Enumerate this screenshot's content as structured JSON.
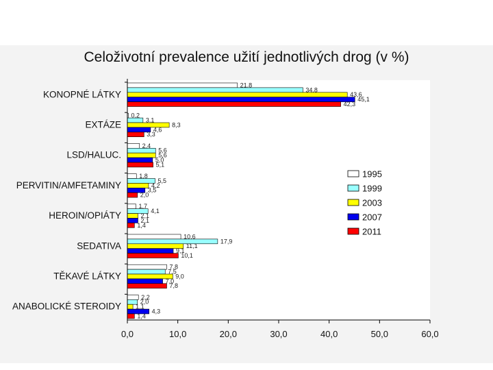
{
  "chart_data": {
    "type": "bar",
    "orientation": "horizontal",
    "title": "Celoživotní prevalence užití jednotlivých drog (v %)",
    "xlabel": "",
    "ylabel": "",
    "xlim": [
      0,
      60
    ],
    "x_ticks": [
      0,
      10,
      20,
      30,
      40,
      50,
      60
    ],
    "x_tick_labels": [
      "0,0",
      "10,0",
      "20,0",
      "30,0",
      "40,0",
      "50,0",
      "60,0"
    ],
    "grid": false,
    "legend_position": "right",
    "categories": [
      "KONOPNÉ LÁTKY",
      "EXTÁZE",
      "LSD/HALUC.",
      "PERVITIN/AMFETAMINY",
      "HEROIN/OPIÁTY",
      "SEDATIVA",
      "TĚKAVÉ LÁTKY",
      "ANABOLICKÉ STEROIDY"
    ],
    "series": [
      {
        "name": "1995",
        "color": "#ffffff",
        "values": [
          21.8,
          0.2,
          2.4,
          1.8,
          1.7,
          10.6,
          7.8,
          2.2
        ],
        "labels": [
          "21,8",
          "0,2",
          "2,4",
          "1,8",
          "1,7",
          "10,6",
          "7,8",
          "2,2"
        ]
      },
      {
        "name": "1999",
        "color": "#99ffff",
        "values": [
          34.8,
          3.1,
          5.6,
          5.5,
          4.1,
          17.9,
          7.5,
          2.0
        ],
        "labels": [
          "34,8",
          "3,1",
          "5,6",
          "5,5",
          "4,1",
          "17,9",
          "7,5",
          "2,0"
        ]
      },
      {
        "name": "2003",
        "color": "#ffff00",
        "values": [
          43.6,
          8.3,
          5.6,
          4.2,
          2.1,
          11.1,
          9.0,
          1.1
        ],
        "labels": [
          "43,6",
          "8,3",
          "5,6",
          "4,2",
          "2,1",
          "11,1",
          "9,0",
          "1,1"
        ]
      },
      {
        "name": "2007",
        "color": "#0000ee",
        "values": [
          45.1,
          4.6,
          5.0,
          3.5,
          2.1,
          9.1,
          7.0,
          4.3
        ],
        "labels": [
          "45,1",
          "4,6",
          "5,0",
          "3,5",
          "2,1",
          "9,1",
          "7,0",
          "4,3"
        ]
      },
      {
        "name": "2011",
        "color": "#ff0000",
        "values": [
          42.3,
          3.3,
          5.1,
          2.0,
          1.4,
          10.1,
          7.8,
          1.4
        ],
        "labels": [
          "42,3",
          "3,3",
          "5,1",
          "2,0",
          "1,4",
          "10,1",
          "7,8",
          "1,4"
        ]
      }
    ]
  }
}
